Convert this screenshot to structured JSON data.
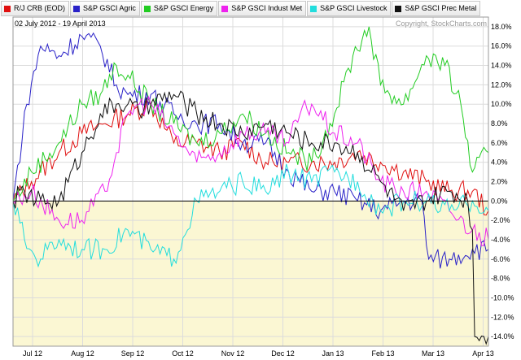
{
  "date_range": "02 July 2012 - 19 April 2013",
  "copyright": "Copyright, StockCharts.com",
  "legend": [
    {
      "label": "R/J CRB (EOD)",
      "color": "#e01010"
    },
    {
      "label": "S&P GSCI Agric",
      "color": "#2a22c8"
    },
    {
      "label": "S&P GSCI Energy",
      "color": "#22cc22"
    },
    {
      "label": "S&P GSCI Indust Met",
      "color": "#ee22ee"
    },
    {
      "label": "S&P GSCI Livestock",
      "color": "#22dddd"
    },
    {
      "label": "S&P GSCI Prec Metal",
      "color": "#111111"
    }
  ],
  "chart_data": {
    "type": "line",
    "x_labels": [
      "Jul 12",
      "Aug 12",
      "Sep 12",
      "Oct 12",
      "Nov 12",
      "Dec 12",
      "Jan 13",
      "Feb 13",
      "Mar 13",
      "Apr 13"
    ],
    "y_ticks": [
      "18.0%",
      "16.0%",
      "14.0%",
      "12.0%",
      "10.0%",
      "8.0%",
      "6.0%",
      "4.0%",
      "2.0%",
      "0.0%",
      "-2.0%",
      "-4.0%",
      "-6.0%",
      "-8.0%",
      "-10.0%",
      "-12.0%",
      "-14.0%"
    ],
    "ylim": [
      -15,
      19
    ],
    "series": [
      {
        "name": "R/J CRB (EOD)",
        "color": "#e01010",
        "x": [
          0,
          8,
          20,
          30,
          40,
          50,
          60,
          70,
          80,
          90,
          100,
          110,
          120,
          130,
          140,
          150,
          160,
          170,
          180,
          190,
          200,
          207
        ],
        "y": [
          0,
          2,
          5,
          7,
          8,
          9,
          10,
          6,
          6,
          5,
          6,
          4,
          4,
          4,
          4,
          5,
          4,
          3,
          2,
          1,
          1,
          -1
        ]
      },
      {
        "name": "S&P GSCI Agric",
        "color": "#2a22c8",
        "x": [
          0,
          6,
          12,
          20,
          30,
          38,
          45,
          50,
          60,
          70,
          80,
          90,
          100,
          110,
          120,
          130,
          140,
          150,
          160,
          170,
          178,
          181,
          190,
          200,
          207
        ],
        "y": [
          0,
          10,
          16,
          15,
          17,
          16,
          12,
          11,
          11,
          9,
          8,
          8,
          6,
          6,
          3,
          1,
          1,
          0,
          -1,
          0,
          0,
          -6,
          -6,
          -5,
          -5
        ]
      },
      {
        "name": "S&P GSCI Energy",
        "color": "#22cc22",
        "x": [
          0,
          8,
          20,
          30,
          38,
          45,
          50,
          60,
          70,
          80,
          90,
          100,
          110,
          120,
          130,
          140,
          148,
          155,
          160,
          170,
          180,
          188,
          195,
          200,
          207
        ],
        "y": [
          0,
          3,
          6,
          10,
          11,
          14,
          13,
          10,
          8,
          6,
          7,
          9,
          7,
          5,
          4,
          9,
          15,
          18,
          12,
          10,
          15,
          14,
          10,
          3,
          5
        ]
      },
      {
        "name": "S&P GSCI Indust Met",
        "color": "#ee22ee",
        "x": [
          0,
          8,
          20,
          30,
          40,
          45,
          50,
          55,
          60,
          70,
          80,
          90,
          100,
          110,
          120,
          125,
          130,
          140,
          150,
          160,
          170,
          180,
          190,
          200,
          207
        ],
        "y": [
          0,
          1,
          -2,
          -2,
          1,
          5,
          9,
          10,
          10,
          7,
          4,
          5,
          7,
          7,
          6,
          9,
          10,
          7,
          6,
          2,
          1,
          1,
          -1,
          -3,
          -4
        ]
      },
      {
        "name": "S&P GSCI Livestock",
        "color": "#22dddd",
        "x": [
          0,
          5,
          10,
          15,
          20,
          30,
          40,
          50,
          60,
          70,
          80,
          90,
          100,
          110,
          120,
          130,
          140,
          150,
          160,
          170,
          180,
          190,
          200,
          207
        ],
        "y": [
          0,
          -4,
          -6,
          -5,
          -4,
          -5,
          -5,
          -3,
          -5,
          -6,
          0,
          1,
          2,
          1,
          3,
          2,
          3,
          2,
          -1,
          0,
          0,
          -1,
          0,
          -1
        ]
      },
      {
        "name": "S&P GSCI Prec Metal",
        "color": "#111111",
        "x": [
          0,
          5,
          10,
          20,
          30,
          38,
          45,
          50,
          55,
          60,
          70,
          80,
          90,
          100,
          110,
          120,
          130,
          140,
          150,
          160,
          170,
          180,
          190,
          198,
          200,
          201,
          205,
          207
        ],
        "y": [
          0,
          1,
          0,
          0,
          5,
          9,
          10,
          10,
          9,
          10,
          11,
          9,
          8,
          7,
          8,
          7,
          6,
          6,
          5,
          2,
          -1,
          0,
          1,
          0,
          -3,
          -14,
          -14,
          -14
        ]
      }
    ]
  }
}
